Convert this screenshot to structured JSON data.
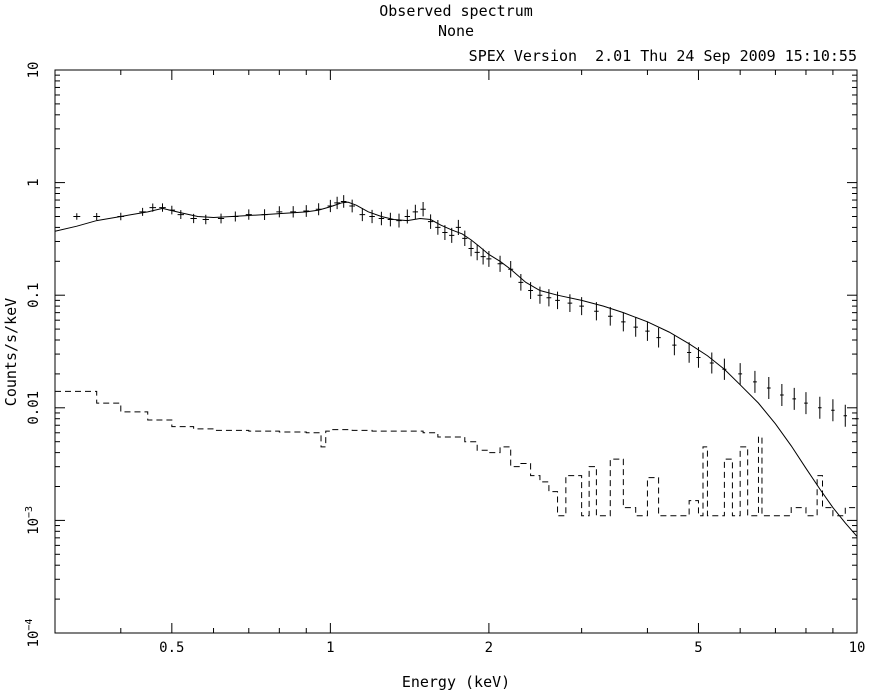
{
  "chart_data": {
    "type": "line",
    "title": "Observed spectrum",
    "subtitle": "None",
    "header": "SPEX Version  2.01 Thu 24 Sep 2009 15:10:55",
    "xlabel": "Energy (keV)",
    "ylabel": "Counts/s/keV",
    "xscale": "log",
    "yscale": "log",
    "xlim": [
      0.3,
      10
    ],
    "ylim": [
      0.0001,
      10
    ],
    "x_ticks": [
      {
        "value": 0.5,
        "label": "0.5"
      },
      {
        "value": 1,
        "label": "1"
      },
      {
        "value": 2,
        "label": "2"
      },
      {
        "value": 5,
        "label": "5"
      },
      {
        "value": 10,
        "label": "10"
      }
    ],
    "y_ticks": [
      {
        "value": 10,
        "label": "10"
      },
      {
        "value": 1,
        "label": "1"
      },
      {
        "value": 0.1,
        "label": "0.1"
      },
      {
        "value": 0.01,
        "label": "0.01"
      },
      {
        "value": 0.001,
        "label": "10",
        "exp": "−3"
      },
      {
        "value": 0.0001,
        "label": "10",
        "exp": "−4"
      }
    ],
    "grid": false,
    "legend": "none",
    "series": [
      {
        "style": "crosses",
        "x": [
          0.33,
          0.36,
          0.4,
          0.44,
          0.46,
          0.48,
          0.5,
          0.52,
          0.55,
          0.58,
          0.62,
          0.66,
          0.7,
          0.75,
          0.8,
          0.85,
          0.9,
          0.95,
          1.0,
          1.03,
          1.06,
          1.1,
          1.15,
          1.2,
          1.25,
          1.3,
          1.35,
          1.4,
          1.45,
          1.5,
          1.55,
          1.6,
          1.65,
          1.7,
          1.75,
          1.8,
          1.85,
          1.9,
          1.95,
          2.0,
          2.1,
          2.2,
          2.3,
          2.4,
          2.5,
          2.6,
          2.7,
          2.85,
          3.0,
          3.2,
          3.4,
          3.6,
          3.8,
          4.0,
          4.2,
          4.5,
          4.8,
          5.0,
          5.3,
          5.6,
          6.0,
          6.4,
          6.8,
          7.2,
          7.6,
          8.0,
          8.5,
          9.0,
          9.5,
          10.0
        ],
        "y": [
          0.5,
          0.5,
          0.5,
          0.55,
          0.6,
          0.6,
          0.57,
          0.52,
          0.48,
          0.47,
          0.48,
          0.5,
          0.52,
          0.52,
          0.55,
          0.55,
          0.56,
          0.58,
          0.62,
          0.66,
          0.68,
          0.62,
          0.52,
          0.5,
          0.48,
          0.47,
          0.46,
          0.5,
          0.55,
          0.58,
          0.45,
          0.4,
          0.36,
          0.34,
          0.4,
          0.32,
          0.26,
          0.24,
          0.22,
          0.21,
          0.19,
          0.17,
          0.13,
          0.11,
          0.1,
          0.095,
          0.09,
          0.085,
          0.08,
          0.072,
          0.065,
          0.058,
          0.052,
          0.048,
          0.042,
          0.036,
          0.031,
          0.028,
          0.025,
          0.022,
          0.02,
          0.017,
          0.015,
          0.013,
          0.012,
          0.011,
          0.01,
          0.0095,
          0.0085,
          0.008
        ]
      },
      {
        "style": "solid",
        "x": [
          0.3,
          0.33,
          0.36,
          0.4,
          0.45,
          0.48,
          0.52,
          0.56,
          0.6,
          0.65,
          0.7,
          0.75,
          0.8,
          0.85,
          0.9,
          0.95,
          1.0,
          1.05,
          1.08,
          1.12,
          1.18,
          1.25,
          1.32,
          1.4,
          1.48,
          1.55,
          1.62,
          1.7,
          1.78,
          1.85,
          1.92,
          2.0,
          2.1,
          2.2,
          2.35,
          2.5,
          2.7,
          3.0,
          3.3,
          3.6,
          4.0,
          4.4,
          4.8,
          5.2,
          5.6,
          6.0,
          6.5,
          7.0,
          7.5,
          8.0,
          8.5,
          9.0,
          9.5,
          10.0
        ],
        "y": [
          0.37,
          0.41,
          0.46,
          0.5,
          0.55,
          0.59,
          0.54,
          0.5,
          0.49,
          0.5,
          0.51,
          0.52,
          0.53,
          0.54,
          0.55,
          0.57,
          0.61,
          0.66,
          0.67,
          0.63,
          0.55,
          0.5,
          0.47,
          0.46,
          0.48,
          0.47,
          0.42,
          0.38,
          0.35,
          0.31,
          0.27,
          0.23,
          0.2,
          0.17,
          0.13,
          0.11,
          0.1,
          0.09,
          0.08,
          0.07,
          0.058,
          0.047,
          0.037,
          0.029,
          0.022,
          0.016,
          0.011,
          0.0072,
          0.0046,
          0.0029,
          0.0019,
          0.0013,
          0.00095,
          0.00072
        ]
      },
      {
        "style": "dashed",
        "x": [
          0.3,
          0.36,
          0.4,
          0.45,
          0.5,
          0.55,
          0.6,
          0.7,
          0.8,
          0.9,
          0.96,
          0.98,
          1.0,
          1.1,
          1.2,
          1.3,
          1.4,
          1.5,
          1.6,
          1.8,
          1.9,
          2.0,
          2.1,
          2.2,
          2.3,
          2.4,
          2.5,
          2.6,
          2.7,
          2.8,
          3.0,
          3.1,
          3.2,
          3.4,
          3.6,
          3.8,
          4.0,
          4.2,
          4.4,
          4.6,
          4.8,
          5.0,
          5.1,
          5.2,
          5.4,
          5.6,
          5.8,
          6.0,
          6.2,
          6.4,
          6.5,
          6.6,
          7.0,
          7.5,
          8.0,
          8.2,
          8.4,
          8.6,
          9.0,
          9.5,
          10.0
        ],
        "y": [
          0.014,
          0.011,
          0.0092,
          0.0078,
          0.0068,
          0.0065,
          0.0063,
          0.0062,
          0.0061,
          0.006,
          0.0045,
          0.0062,
          0.0064,
          0.0063,
          0.0062,
          0.0062,
          0.0062,
          0.006,
          0.0055,
          0.005,
          0.0042,
          0.004,
          0.0045,
          0.003,
          0.0032,
          0.0025,
          0.0022,
          0.0018,
          0.0011,
          0.0025,
          0.0011,
          0.003,
          0.0011,
          0.0035,
          0.0013,
          0.0011,
          0.0024,
          0.0011,
          0.0011,
          0.0011,
          0.0015,
          0.0011,
          0.0045,
          0.0011,
          0.0011,
          0.0035,
          0.0011,
          0.0045,
          0.0011,
          0.0011,
          0.0055,
          0.0011,
          0.0011,
          0.0013,
          0.0011,
          0.0011,
          0.0025,
          0.0013,
          0.0011,
          0.0013,
          0.0011
        ]
      }
    ]
  }
}
